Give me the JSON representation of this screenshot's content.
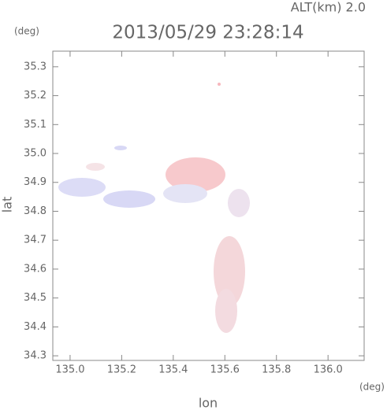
{
  "chart_data": {
    "type": "map",
    "altitude_label": "ALT(km) 2.0",
    "title": "2013/05/29 23:28:14",
    "y_unit": "(deg)",
    "x_unit": "(deg)",
    "xlabel": "lon",
    "ylabel": "lat",
    "xlim": [
      134.933,
      136.14
    ],
    "ylim": [
      34.284,
      35.354
    ],
    "xticks": [
      {
        "value": 135.0,
        "label": "135.0"
      },
      135.2,
      135.4,
      135.6,
      135.8,
      {
        "value": 136.0,
        "label": "136.0"
      }
    ],
    "yticks": [
      34.3,
      34.4,
      34.5,
      34.6,
      34.7,
      34.8,
      34.9,
      {
        "value": 35.0,
        "label": "35.0"
      },
      35.1,
      35.2,
      35.3
    ]
  }
}
